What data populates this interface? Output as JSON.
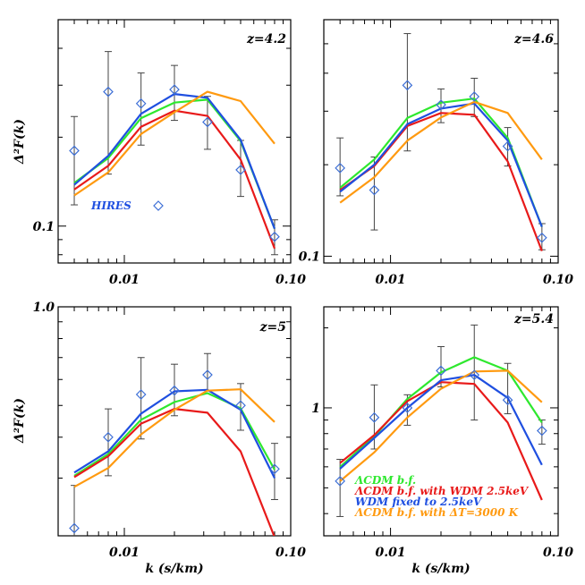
{
  "colors": {
    "lcdm": "#2ee82e",
    "wdm_bf": "#e81a1a",
    "wdm_fixed": "#1f4fe0",
    "dT": "#ff9a10",
    "data": "#3d6fd6",
    "errorbar": "#444444",
    "axis": "#000000"
  },
  "chart_data": [
    {
      "type": "line",
      "panel": "top-left",
      "z_label": "z=4.2",
      "ylabel": "Δ²F(k)",
      "xlabel": "",
      "xscale": "log",
      "yscale": "log",
      "xlim": [
        0.004,
        0.1
      ],
      "ylim": [
        0.075,
        0.5
      ],
      "x_ticks": [
        {
          "value": 0.01,
          "label": "0.01"
        },
        {
          "value": 0.1,
          "label": "0.10"
        }
      ],
      "y_ticks": [
        {
          "value": 0.1,
          "label": "0.1"
        }
      ],
      "k": [
        0.005,
        0.008,
        0.0126,
        0.02,
        0.0316,
        0.05,
        0.08
      ],
      "series": [
        {
          "name": "ΛCDM b.f.",
          "color_key": "lcdm",
          "values": [
            0.14,
            0.17,
            0.232,
            0.262,
            0.268,
            0.194,
            0.098
          ]
        },
        {
          "name": "ΛCDM b.f. with WDM 2.5keV",
          "color_key": "wdm_bf",
          "values": [
            0.133,
            0.16,
            0.217,
            0.246,
            0.236,
            0.168,
            0.084
          ]
        },
        {
          "name": "WDM fixed to 2.5keV",
          "color_key": "wdm_fixed",
          "values": [
            0.138,
            0.173,
            0.24,
            0.28,
            0.272,
            0.196,
            0.098
          ]
        },
        {
          "name": "ΛCDM b.f. with ΔT=3000 K",
          "color_key": "dT",
          "values": [
            0.127,
            0.152,
            0.205,
            0.243,
            0.285,
            0.265,
            0.19
          ]
        }
      ],
      "observations": {
        "name": "HIRES",
        "k": [
          0.005,
          0.008,
          0.0126,
          0.02,
          0.0316,
          0.05,
          0.08
        ],
        "values": [
          0.18,
          0.285,
          0.26,
          0.29,
          0.225,
          0.155,
          0.092
        ],
        "err_low": [
          0.118,
          0.15,
          0.188,
          0.228,
          0.182,
          0.126,
          0.08
        ],
        "err_high": [
          0.235,
          0.39,
          0.33,
          0.35,
          0.275,
          0.195,
          0.105
        ]
      },
      "legend_text": "HIRES"
    },
    {
      "type": "line",
      "panel": "top-right",
      "z_label": "z=4.6",
      "ylabel": "",
      "xlabel": "",
      "xscale": "log",
      "yscale": "log",
      "xlim": [
        0.004,
        0.1
      ],
      "ylim": [
        0.095,
        0.6
      ],
      "x_ticks": [
        {
          "value": 0.01,
          "label": "0.01"
        },
        {
          "value": 0.1,
          "label": "0.10"
        }
      ],
      "y_ticks": [
        {
          "value": 0.1,
          "label": "0.1"
        }
      ],
      "k": [
        0.005,
        0.008,
        0.0126,
        0.02,
        0.0316,
        0.05,
        0.08
      ],
      "series": [
        {
          "name": "ΛCDM b.f.",
          "color_key": "lcdm",
          "values": [
            0.168,
            0.208,
            0.285,
            0.32,
            0.33,
            0.245,
            0.125
          ]
        },
        {
          "name": "ΛCDM b.f. with WDM 2.5keV",
          "color_key": "wdm_bf",
          "values": [
            0.165,
            0.198,
            0.268,
            0.296,
            0.292,
            0.205,
            0.104
          ]
        },
        {
          "name": "WDM fixed to 2.5keV",
          "color_key": "wdm_fixed",
          "values": [
            0.163,
            0.2,
            0.272,
            0.306,
            0.318,
            0.24,
            0.125
          ]
        },
        {
          "name": "ΛCDM b.f. with ΔT=3000 K",
          "color_key": "dT",
          "values": [
            0.15,
            0.182,
            0.24,
            0.286,
            0.322,
            0.296,
            0.208
          ]
        }
      ],
      "observations": {
        "name": "HIRES",
        "k": [
          0.005,
          0.008,
          0.0126,
          0.02,
          0.0316,
          0.05,
          0.08
        ],
        "values": [
          0.195,
          0.165,
          0.365,
          0.315,
          0.335,
          0.23,
          0.115
        ],
        "err_low": [
          0.158,
          0.122,
          0.222,
          0.275,
          0.288,
          0.198,
          0.105
        ],
        "err_high": [
          0.245,
          0.212,
          0.54,
          0.355,
          0.385,
          0.265,
          0.128
        ]
      }
    },
    {
      "type": "line",
      "panel": "bottom-left",
      "z_label": "z=5",
      "ylabel": "Δ²F(k)",
      "xlabel": "k (s/km)",
      "xscale": "log",
      "yscale": "log",
      "xlim": [
        0.004,
        0.1
      ],
      "ylim": [
        0.2,
        1.0
      ],
      "x_ticks": [
        {
          "value": 0.01,
          "label": "0.01"
        },
        {
          "value": 0.1,
          "label": "0.10"
        }
      ],
      "y_ticks": [
        {
          "value": 1.0,
          "label": "1.0"
        }
      ],
      "k": [
        0.005,
        0.008,
        0.0126,
        0.02,
        0.0316,
        0.05,
        0.08
      ],
      "series": [
        {
          "name": "ΛCDM b.f.",
          "color_key": "lcdm",
          "values": [
            0.305,
            0.355,
            0.452,
            0.512,
            0.545,
            0.49,
            0.318
          ]
        },
        {
          "name": "ΛCDM b.f. with WDM 2.5keV",
          "color_key": "wdm_bf",
          "values": [
            0.302,
            0.35,
            0.44,
            0.488,
            0.475,
            0.362,
            0.198
          ]
        },
        {
          "name": "WDM fixed to 2.5keV",
          "color_key": "wdm_fixed",
          "values": [
            0.312,
            0.362,
            0.472,
            0.552,
            0.558,
            0.485,
            0.3
          ]
        },
        {
          "name": "ΛCDM b.f. with ΔT=3000 K",
          "color_key": "dT",
          "values": [
            0.282,
            0.322,
            0.408,
            0.485,
            0.555,
            0.56,
            0.445
          ]
        }
      ],
      "observations": {
        "name": "HIRES",
        "k": [
          0.005,
          0.008,
          0.0126,
          0.02,
          0.0316,
          0.05,
          0.08
        ],
        "values": [
          0.211,
          0.4,
          0.54,
          0.555,
          0.62,
          0.5,
          0.32
        ],
        "err_low": [
          0.198,
          0.305,
          0.395,
          0.465,
          0.555,
          0.42,
          0.258
        ],
        "err_high": [
          0.285,
          0.488,
          0.7,
          0.668,
          0.72,
          0.583,
          0.383
        ]
      }
    },
    {
      "type": "line",
      "panel": "bottom-right",
      "z_label": "z=5.4",
      "ylabel": "",
      "xlabel": "k (s/km)",
      "xscale": "log",
      "yscale": "log",
      "xlim": [
        0.004,
        0.1
      ],
      "ylim": [
        0.33,
        2.4
      ],
      "x_ticks": [
        {
          "value": 0.01,
          "label": "0.01"
        },
        {
          "value": 0.1,
          "label": "0.10"
        }
      ],
      "y_ticks": [
        {
          "value": 1.0,
          "label": "1"
        }
      ],
      "k": [
        0.005,
        0.008,
        0.0126,
        0.02,
        0.0316,
        0.05,
        0.08
      ],
      "series": [
        {
          "name": "ΛCDM b.f.",
          "color_key": "lcdm",
          "values": [
            0.6,
            0.78,
            1.08,
            1.36,
            1.55,
            1.38,
            0.88
          ]
        },
        {
          "name": "ΛCDM b.f. with WDM 2.5keV",
          "color_key": "wdm_bf",
          "values": [
            0.62,
            0.79,
            1.06,
            1.25,
            1.23,
            0.88,
            0.45
          ]
        },
        {
          "name": "WDM fixed to 2.5keV",
          "color_key": "wdm_fixed",
          "values": [
            0.59,
            0.77,
            1.0,
            1.27,
            1.33,
            1.09,
            0.61
          ]
        },
        {
          "name": "ΛCDM b.f. with ΔT=3000 K",
          "color_key": "dT",
          "values": [
            0.53,
            0.68,
            0.92,
            1.18,
            1.37,
            1.38,
            1.05
          ]
        }
      ],
      "observations": {
        "name": "HIRES",
        "k": [
          0.005,
          0.008,
          0.0126,
          0.02,
          0.0316,
          0.05,
          0.08
        ],
        "values": [
          0.53,
          0.92,
          1.0,
          1.38,
          1.33,
          1.07,
          0.82
        ],
        "err_low": [
          0.39,
          0.7,
          0.86,
          1.2,
          0.9,
          0.95,
          0.73
        ],
        "err_high": [
          0.64,
          1.22,
          1.12,
          1.7,
          2.05,
          1.47,
          0.9
        ]
      },
      "legend": [
        {
          "text": "ΛCDM b.f.",
          "color_key": "lcdm"
        },
        {
          "text": "ΛCDM b.f. with WDM 2.5keV",
          "color_key": "wdm_bf"
        },
        {
          "text": "WDM fixed to 2.5keV",
          "color_key": "wdm_fixed"
        },
        {
          "text": "ΛCDM b.f. with ΔT=3000 K",
          "color_key": "dT"
        }
      ],
      "legend_position": "bottom-right"
    }
  ]
}
